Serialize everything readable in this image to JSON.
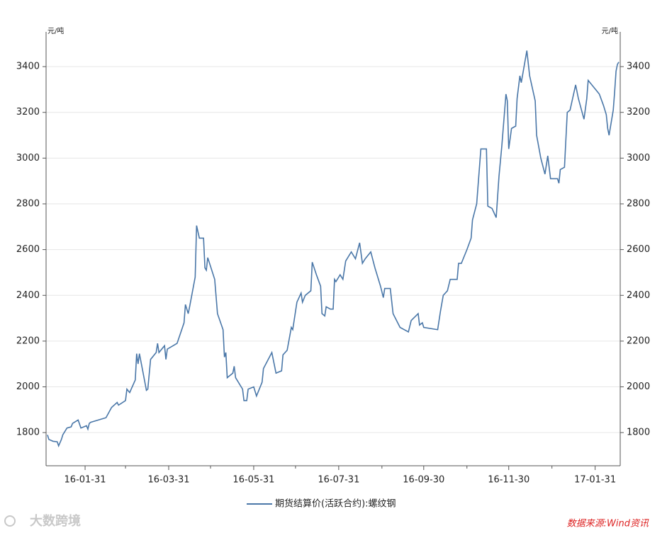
{
  "chart_data": {
    "type": "line",
    "y_unit": "元/吨",
    "y2_unit": "元/吨",
    "source": "数据来源:Wind资讯",
    "watermark": "大数跨境",
    "grid": true,
    "legend": "bottom",
    "xlim": [
      "2016-01-03",
      "2017-02-18"
    ],
    "xticks": [
      {
        "value": "2016-01-31",
        "label": "16-01-31"
      },
      {
        "value": "2016-03-31",
        "label": "16-03-31"
      },
      {
        "value": "2016-05-31",
        "label": "16-05-31"
      },
      {
        "value": "2016-07-31",
        "label": "16-07-31"
      },
      {
        "value": "2016-09-30",
        "label": "16-09-30"
      },
      {
        "value": "2016-11-30",
        "label": "16-11-30"
      },
      {
        "value": "2017-01-31",
        "label": "17-01-31"
      }
    ],
    "xminorticks": [
      "2016-02-29",
      "2016-04-30",
      "2016-06-30",
      "2016-08-31",
      "2016-10-31",
      "2016-12-31"
    ],
    "ylim": [
      1655,
      3552
    ],
    "yticks": [
      1800,
      2000,
      2200,
      2400,
      2600,
      2800,
      3000,
      3200,
      3400
    ],
    "y2lim": [
      1655,
      3552
    ],
    "y2ticks": [
      1800,
      2000,
      2200,
      2400,
      2600,
      2800,
      3000,
      3200,
      3400
    ],
    "x": [
      "2016-01-04",
      "2016-01-05",
      "2016-01-08",
      "2016-01-11",
      "2016-01-12",
      "2016-01-14",
      "2016-01-15",
      "2016-01-18",
      "2016-01-21",
      "2016-01-22",
      "2016-01-26",
      "2016-01-28",
      "2016-02-01",
      "2016-02-02",
      "2016-02-03",
      "2016-02-04",
      "2016-02-15",
      "2016-02-19",
      "2016-02-23",
      "2016-02-24",
      "2016-02-29",
      "2016-03-01",
      "2016-03-03",
      "2016-03-07",
      "2016-03-08",
      "2016-03-09",
      "2016-03-10",
      "2016-03-15",
      "2016-03-16",
      "2016-03-18",
      "2016-03-22",
      "2016-03-23",
      "2016-03-24",
      "2016-03-28",
      "2016-03-29",
      "2016-03-30",
      "2016-04-06",
      "2016-04-11",
      "2016-04-12",
      "2016-04-14",
      "2016-04-15",
      "2016-04-19",
      "2016-04-20",
      "2016-04-22",
      "2016-04-25",
      "2016-04-26",
      "2016-04-27",
      "2016-04-28",
      "2016-05-03",
      "2016-05-05",
      "2016-05-09",
      "2016-05-10",
      "2016-05-11",
      "2016-05-12",
      "2016-05-16",
      "2016-05-17",
      "2016-05-18",
      "2016-05-23",
      "2016-05-24",
      "2016-05-26",
      "2016-05-27",
      "2016-05-31",
      "2016-06-02",
      "2016-06-06",
      "2016-06-07",
      "2016-06-13",
      "2016-06-15",
      "2016-06-16",
      "2016-06-20",
      "2016-06-21",
      "2016-06-24",
      "2016-06-27",
      "2016-06-28",
      "2016-07-01",
      "2016-07-04",
      "2016-07-05",
      "2016-07-07",
      "2016-07-11",
      "2016-07-12",
      "2016-07-15",
      "2016-07-18",
      "2016-07-19",
      "2016-07-21",
      "2016-07-22",
      "2016-07-25",
      "2016-07-27",
      "2016-07-28",
      "2016-07-29",
      "2016-08-01",
      "2016-08-03",
      "2016-08-05",
      "2016-08-09",
      "2016-08-12",
      "2016-08-15",
      "2016-08-17",
      "2016-08-19",
      "2016-08-23",
      "2016-08-26",
      "2016-08-30",
      "2016-09-01",
      "2016-09-02",
      "2016-09-06",
      "2016-09-08",
      "2016-09-13",
      "2016-09-19",
      "2016-09-21",
      "2016-09-26",
      "2016-09-27",
      "2016-09-29",
      "2016-09-30",
      "2016-10-10",
      "2016-10-12",
      "2016-10-14",
      "2016-10-17",
      "2016-10-19",
      "2016-10-24",
      "2016-10-25",
      "2016-10-27",
      "2016-10-31",
      "2016-11-03",
      "2016-11-04",
      "2016-11-07",
      "2016-11-10",
      "2016-11-14",
      "2016-11-15",
      "2016-11-18",
      "2016-11-21",
      "2016-11-23",
      "2016-11-25",
      "2016-11-28",
      "2016-11-29",
      "2016-11-30",
      "2016-12-02",
      "2016-12-05",
      "2016-12-06",
      "2016-12-08",
      "2016-12-09",
      "2016-12-13",
      "2016-12-15",
      "2016-12-19",
      "2016-12-20",
      "2016-12-23",
      "2016-12-26",
      "2016-12-28",
      "2016-12-30",
      "2017-01-04",
      "2017-01-05",
      "2017-01-06",
      "2017-01-09",
      "2017-01-11",
      "2017-01-13",
      "2017-01-17",
      "2017-01-19",
      "2017-01-23",
      "2017-01-25",
      "2017-01-26",
      "2017-02-03",
      "2017-02-06",
      "2017-02-08",
      "2017-02-09",
      "2017-02-10",
      "2017-02-13",
      "2017-02-14",
      "2017-02-15",
      "2017-02-16",
      "2017-02-17"
    ],
    "series": [
      {
        "name": "期货结算价(活跃合约):螺纹钢",
        "color": "#4a77a8",
        "values": [
          1790,
          1770,
          1762,
          1760,
          1742,
          1770,
          1790,
          1820,
          1825,
          1840,
          1855,
          1820,
          1830,
          1815,
          1840,
          1845,
          1865,
          1910,
          1932,
          1920,
          1940,
          1990,
          1975,
          2030,
          2145,
          2100,
          2145,
          1985,
          1990,
          2120,
          2150,
          2190,
          2150,
          2180,
          2120,
          2165,
          2190,
          2280,
          2360,
          2320,
          2350,
          2480,
          2705,
          2650,
          2650,
          2520,
          2510,
          2565,
          2470,
          2320,
          2250,
          2130,
          2150,
          2040,
          2060,
          2090,
          2040,
          1990,
          1940,
          1940,
          1990,
          2000,
          1960,
          2020,
          2080,
          2150,
          2090,
          2060,
          2070,
          2140,
          2160,
          2260,
          2250,
          2370,
          2410,
          2370,
          2400,
          2420,
          2545,
          2490,
          2440,
          2320,
          2310,
          2350,
          2340,
          2340,
          2470,
          2460,
          2490,
          2470,
          2550,
          2590,
          2560,
          2630,
          2540,
          2560,
          2590,
          2520,
          2440,
          2390,
          2430,
          2430,
          2320,
          2260,
          2240,
          2290,
          2320,
          2270,
          2280,
          2260,
          2250,
          2330,
          2400,
          2420,
          2470,
          2470,
          2540,
          2540,
          2600,
          2650,
          2730,
          2800,
          3040,
          3040,
          2790,
          2780,
          2740,
          2920,
          3050,
          3280,
          3250,
          3040,
          3130,
          3140,
          3260,
          3360,
          3330,
          3470,
          3360,
          3250,
          3100,
          3000,
          2930,
          3010,
          2910,
          2910,
          2890,
          2950,
          2960,
          3200,
          3210,
          3320,
          3260,
          3170,
          3260,
          3340,
          3280,
          3230,
          3190,
          3130,
          3100,
          3210,
          3290,
          3380,
          3410,
          3420
        ]
      }
    ]
  }
}
